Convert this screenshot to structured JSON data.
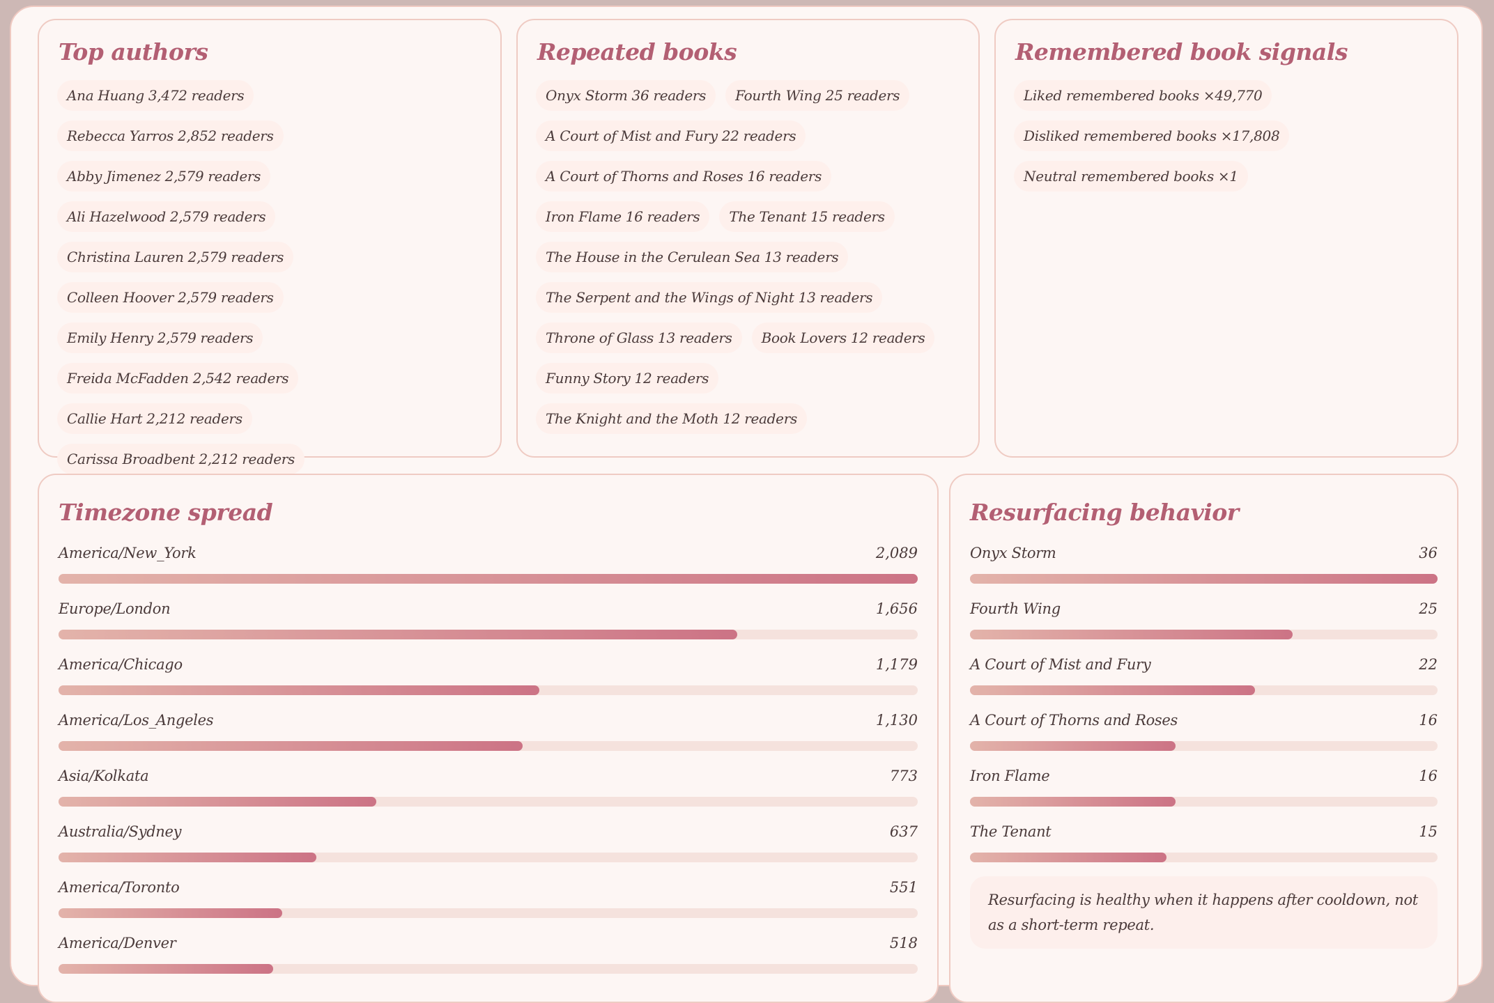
{
  "top_authors": {
    "title": "Top authors",
    "items": [
      {
        "name": "Ana Huang",
        "count": "3,472 readers"
      },
      {
        "name": "Rebecca Yarros",
        "count": "2,852 readers"
      },
      {
        "name": "Abby Jimenez",
        "count": "2,579 readers"
      },
      {
        "name": "Ali Hazelwood",
        "count": "2,579 readers"
      },
      {
        "name": "Christina Lauren",
        "count": "2,579 readers"
      },
      {
        "name": "Colleen Hoover",
        "count": "2,579 readers"
      },
      {
        "name": "Emily Henry",
        "count": "2,579 readers"
      },
      {
        "name": "Freida McFadden",
        "count": "2,542 readers"
      },
      {
        "name": "Callie Hart",
        "count": "2,212 readers"
      },
      {
        "name": "Carissa Broadbent",
        "count": "2,212 readers"
      }
    ]
  },
  "repeated_books": {
    "title": "Repeated books",
    "items": [
      {
        "name": "Onyx Storm",
        "count": "36 readers"
      },
      {
        "name": "Fourth Wing",
        "count": "25 readers"
      },
      {
        "name": "A Court of Mist and Fury",
        "count": "22 readers"
      },
      {
        "name": "A Court of Thorns and Roses",
        "count": "16 readers"
      },
      {
        "name": "Iron Flame",
        "count": "16 readers"
      },
      {
        "name": "The Tenant",
        "count": "15 readers"
      },
      {
        "name": "The House in the Cerulean Sea",
        "count": "13 readers"
      },
      {
        "name": "The Serpent and the Wings of Night",
        "count": "13 readers"
      },
      {
        "name": "Throne of Glass",
        "count": "13 readers"
      },
      {
        "name": "Book Lovers",
        "count": "12 readers"
      },
      {
        "name": "Funny Story",
        "count": "12 readers"
      },
      {
        "name": "The Knight and the Moth",
        "count": "12 readers"
      }
    ]
  },
  "remembered_signals": {
    "title": "Remembered book signals",
    "items": [
      {
        "name": "Liked remembered books",
        "count": "×49,770"
      },
      {
        "name": "Disliked remembered books",
        "count": "×17,808"
      },
      {
        "name": "Neutral remembered books",
        "count": "×1"
      }
    ]
  },
  "timezone_spread": {
    "title": "Timezone spread",
    "rows": [
      {
        "label": "America/New_York",
        "value": "2,089",
        "fraction": 1.0
      },
      {
        "label": "Europe/London",
        "value": "1,656",
        "fraction": 0.79
      },
      {
        "label": "America/Chicago",
        "value": "1,179",
        "fraction": 0.56
      },
      {
        "label": "America/Los_Angeles",
        "value": "1,130",
        "fraction": 0.54
      },
      {
        "label": "Asia/Kolkata",
        "value": "773",
        "fraction": 0.37
      },
      {
        "label": "Australia/Sydney",
        "value": "637",
        "fraction": 0.3
      },
      {
        "label": "America/Toronto",
        "value": "551",
        "fraction": 0.26
      },
      {
        "label": "America/Denver",
        "value": "518",
        "fraction": 0.25
      }
    ]
  },
  "resurfacing": {
    "title": "Resurfacing behavior",
    "rows": [
      {
        "label": "Onyx Storm",
        "value": "36",
        "fraction": 1.0
      },
      {
        "label": "Fourth Wing",
        "value": "25",
        "fraction": 0.69
      },
      {
        "label": "A Court of Mist and Fury",
        "value": "22",
        "fraction": 0.61
      },
      {
        "label": "A Court of Thorns and Roses",
        "value": "16",
        "fraction": 0.44
      },
      {
        "label": "Iron Flame",
        "value": "16",
        "fraction": 0.44
      },
      {
        "label": "The Tenant",
        "value": "15",
        "fraction": 0.42
      }
    ],
    "note": "Resurfacing is healthy when it happens after cooldown, not as a short-term repeat."
  },
  "colors": {
    "accent_title": "#b35f73",
    "bar_start": "#e3b3aa",
    "bar_end": "#cc7385",
    "track": "#f5e2dd",
    "card_border": "#efcbc3"
  }
}
